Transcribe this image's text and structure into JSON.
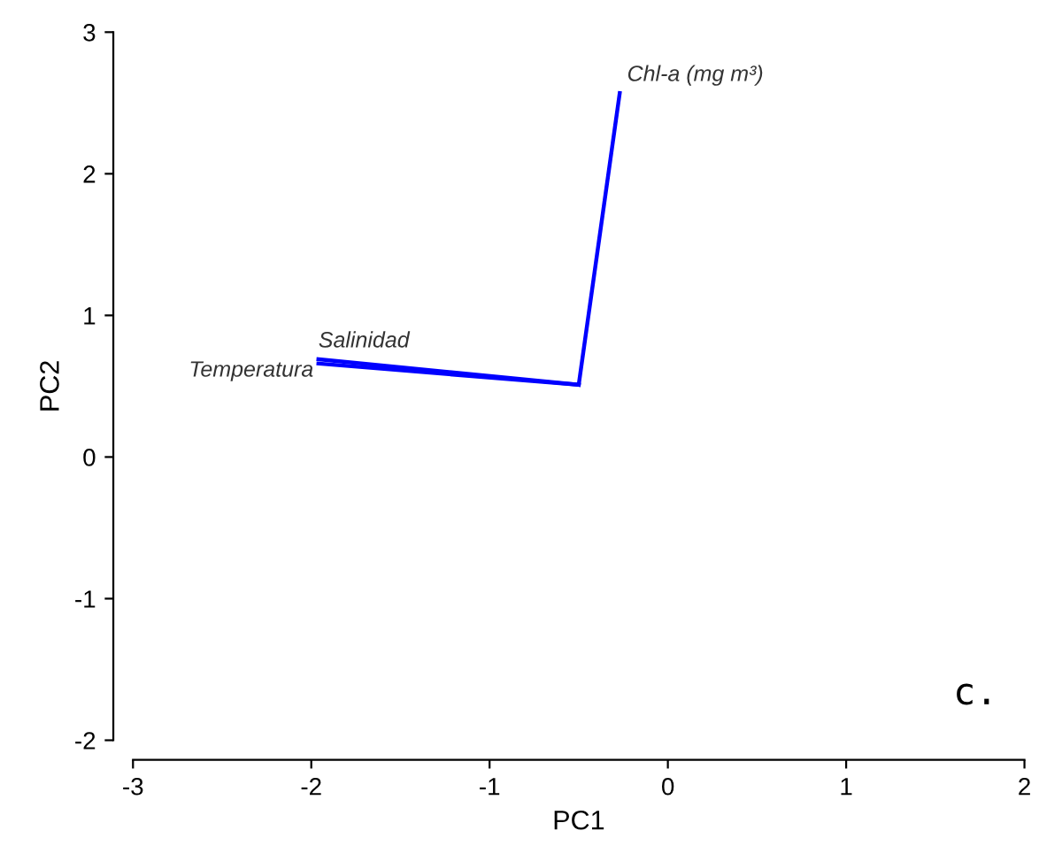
{
  "chart_data": {
    "type": "line",
    "xlabel": "PC1",
    "ylabel": "PC2",
    "xlim": [
      -3,
      2
    ],
    "ylim": [
      -2,
      3
    ],
    "xticks": [
      -3,
      -2,
      -1,
      0,
      1,
      2
    ],
    "yticks": [
      -2,
      -1,
      0,
      1,
      2,
      3
    ],
    "grid": false,
    "legend": false,
    "marker": "none",
    "line_style": "solid",
    "series": [
      {
        "name": "Chl-a (mg m³)",
        "color": "#0000ff",
        "x": [
          -0.5,
          -0.27
        ],
        "values": [
          0.51,
          2.57
        ]
      },
      {
        "name": "Salinidad",
        "color": "#0000ff",
        "x": [
          -0.5,
          -1.96
        ],
        "values": [
          0.51,
          0.69
        ]
      },
      {
        "name": "Temperatura",
        "color": "#0000ff",
        "x": [
          -0.5,
          -1.96
        ],
        "values": [
          0.51,
          0.66
        ]
      }
    ],
    "annotations": [
      "c."
    ]
  }
}
